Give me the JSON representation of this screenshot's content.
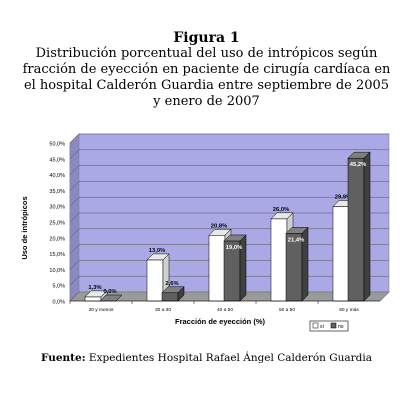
{
  "figure": {
    "label": "Figura 1",
    "title": "Distribución porcentual del uso de intrópicos según fracción de eyección en paciente de cirugía cardíaca en el hospital Calderón Guardia entre septiembre de 2005 y enero de 2007"
  },
  "source": {
    "prefix": "Fuente:",
    "text": "Expedientes Hospital Rafael Ángel Calderón Guardia"
  },
  "chart_data": {
    "type": "bar",
    "categories": [
      "20 y menos",
      "30 a 30",
      "40 a 50",
      "50 a 50",
      "60 y más"
    ],
    "series": [
      {
        "name": "sí",
        "values": [
          1.3,
          13.0,
          20.8,
          26.0,
          29.9
        ],
        "labels": [
          "1,3%",
          "13,0%",
          "20,8%",
          "26,0%",
          "29,9%"
        ]
      },
      {
        "name": "no",
        "values": [
          0.0,
          2.6,
          19.0,
          21.4,
          45.2
        ],
        "labels": [
          "0,0%",
          "2,6%",
          "19,0%",
          "21,4%",
          "45,2%"
        ]
      }
    ],
    "ylim": [
      0,
      50
    ],
    "yticks": [
      "0,0%",
      "5,0%",
      "10,0%",
      "15,0%",
      "20,0%",
      "25,0%",
      "30,0%",
      "35,0%",
      "40,0%",
      "45,0%",
      "50,0%"
    ],
    "xlabel": "Fracción de eyección (%)",
    "ylabel": "Uso de intrópicos",
    "legend_position": "bottom-right",
    "grid": true,
    "colors": {
      "plot_background": "#aaa9e6",
      "series_si": "#ffffff",
      "series_no": "#606060"
    }
  }
}
